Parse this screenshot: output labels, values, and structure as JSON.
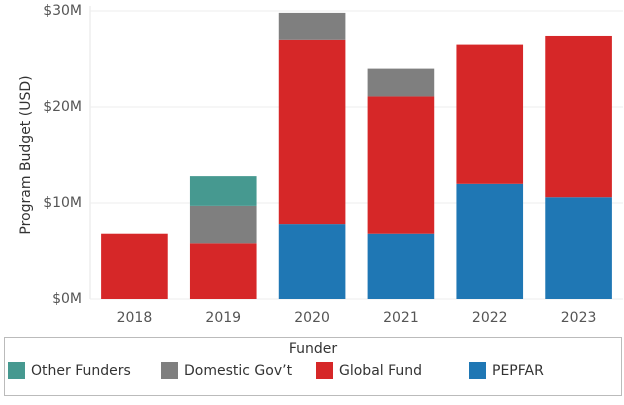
{
  "chart_data": {
    "type": "stacked_bar",
    "y_label": "Program Budget (USD)",
    "categories": [
      "2018",
      "2019",
      "2020",
      "2021",
      "2022",
      "2023"
    ],
    "series": [
      {
        "name": "PEPFAR",
        "color": "#1f77b4",
        "values": [
          null,
          null,
          7800000,
          6800000,
          12000000,
          10600000
        ]
      },
      {
        "name": "Global Fund",
        "color": "#d62728",
        "values": [
          6800000,
          5800000,
          19200000,
          14300000,
          14500000,
          16800000
        ]
      },
      {
        "name": "Domestic Gov’t",
        "color": "#7f7f7f",
        "values": [
          null,
          3900000,
          2800000,
          2900000,
          null,
          null
        ]
      },
      {
        "name": "Other Funders",
        "color": "#469990",
        "values": [
          null,
          3100000,
          null,
          null,
          null,
          null
        ]
      }
    ],
    "ylim": [
      0,
      30000000
    ],
    "yticks": [
      {
        "value": 0,
        "label": "$0M"
      },
      {
        "value": 10000000,
        "label": "$10M"
      },
      {
        "value": 20000000,
        "label": "$20M"
      },
      {
        "value": 30000000,
        "label": "$30M"
      }
    ],
    "grid": true,
    "legend_title": "Funder",
    "legend": "bottom"
  }
}
